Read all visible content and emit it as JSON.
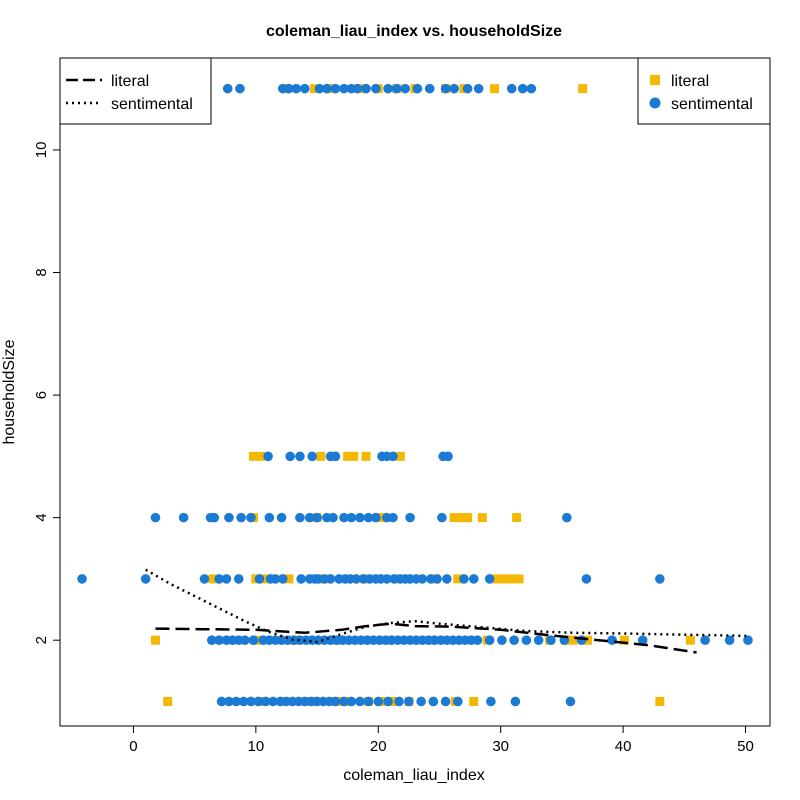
{
  "chart_data": {
    "type": "scatter",
    "title": "coleman_liau_index vs. householdSize",
    "xlabel": "coleman_liau_index",
    "ylabel": "householdSize",
    "xlim": [
      -6,
      52
    ],
    "ylim": [
      0.6,
      11.5
    ],
    "xticks": [
      0,
      10,
      20,
      30,
      40,
      50
    ],
    "yticks": [
      2,
      4,
      6,
      8,
      10
    ],
    "grid": false,
    "colors": {
      "literal": "#F5B800",
      "sentimental": "#1A7AD4"
    },
    "series": [
      {
        "name": "literal",
        "marker": "square",
        "points": [
          [
            12.5,
            11
          ],
          [
            14.8,
            11
          ],
          [
            16,
            11
          ],
          [
            18.5,
            11
          ],
          [
            20,
            11
          ],
          [
            21.5,
            11
          ],
          [
            23,
            11
          ],
          [
            25.5,
            11
          ],
          [
            27,
            11
          ],
          [
            29.5,
            11
          ],
          [
            36.7,
            11
          ],
          [
            9.8,
            5
          ],
          [
            10.4,
            5
          ],
          [
            15.3,
            5
          ],
          [
            16.4,
            5
          ],
          [
            17.5,
            5
          ],
          [
            18,
            5
          ],
          [
            19,
            5
          ],
          [
            21.8,
            5
          ],
          [
            9.8,
            4
          ],
          [
            15,
            4
          ],
          [
            20.2,
            4
          ],
          [
            26.2,
            4
          ],
          [
            26.8,
            4
          ],
          [
            27.3,
            4
          ],
          [
            28.5,
            4
          ],
          [
            31.3,
            4
          ],
          [
            6.5,
            3
          ],
          [
            10,
            3
          ],
          [
            10.8,
            3
          ],
          [
            12.7,
            3
          ],
          [
            15.6,
            3
          ],
          [
            18.9,
            3
          ],
          [
            21.5,
            3
          ],
          [
            24.7,
            3
          ],
          [
            26.5,
            3
          ],
          [
            29.6,
            3
          ],
          [
            30,
            3
          ],
          [
            30.5,
            3
          ],
          [
            31,
            3
          ],
          [
            31.5,
            3
          ],
          [
            1.8,
            2
          ],
          [
            10,
            2
          ],
          [
            13.2,
            2
          ],
          [
            16.7,
            2
          ],
          [
            20.8,
            2
          ],
          [
            24.4,
            2
          ],
          [
            28.9,
            2
          ],
          [
            34,
            2
          ],
          [
            35.3,
            2
          ],
          [
            35.9,
            2
          ],
          [
            37.1,
            2
          ],
          [
            40.1,
            2
          ],
          [
            45.5,
            2
          ],
          [
            2.8,
            1
          ],
          [
            10.6,
            1
          ],
          [
            12.3,
            1
          ],
          [
            14.6,
            1
          ],
          [
            16.2,
            1
          ],
          [
            17,
            1
          ],
          [
            17.5,
            1
          ],
          [
            19.2,
            1
          ],
          [
            20.2,
            1
          ],
          [
            21.2,
            1
          ],
          [
            22.5,
            1
          ],
          [
            26.3,
            1
          ],
          [
            27.8,
            1
          ],
          [
            43,
            1
          ]
        ]
      },
      {
        "name": "sentimental",
        "marker": "circle",
        "points": [
          [
            7.7,
            11
          ],
          [
            8.7,
            11
          ],
          [
            12.2,
            11
          ],
          [
            12.7,
            11
          ],
          [
            13.3,
            11
          ],
          [
            14,
            11
          ],
          [
            15.2,
            11
          ],
          [
            15.8,
            11
          ],
          [
            16.5,
            11
          ],
          [
            17.2,
            11
          ],
          [
            17.8,
            11
          ],
          [
            18.3,
            11
          ],
          [
            19,
            11
          ],
          [
            19.8,
            11
          ],
          [
            20.8,
            11
          ],
          [
            21.5,
            11
          ],
          [
            22.2,
            11
          ],
          [
            23.2,
            11
          ],
          [
            24.2,
            11
          ],
          [
            25.5,
            11
          ],
          [
            26.2,
            11
          ],
          [
            27.3,
            11
          ],
          [
            28.2,
            11
          ],
          [
            30.9,
            11
          ],
          [
            31.8,
            11
          ],
          [
            32.5,
            11
          ],
          [
            11,
            5
          ],
          [
            12.8,
            5
          ],
          [
            13.6,
            5
          ],
          [
            14.6,
            5
          ],
          [
            16.1,
            5
          ],
          [
            16.5,
            5
          ],
          [
            20.3,
            5
          ],
          [
            20.7,
            5
          ],
          [
            21.2,
            5
          ],
          [
            25.3,
            5
          ],
          [
            25.7,
            5
          ],
          [
            1.8,
            4
          ],
          [
            4.1,
            4
          ],
          [
            6.3,
            4
          ],
          [
            6.6,
            4
          ],
          [
            7.8,
            4
          ],
          [
            8.8,
            4
          ],
          [
            9.6,
            4
          ],
          [
            11.1,
            4
          ],
          [
            12.1,
            4
          ],
          [
            13.6,
            4
          ],
          [
            14.4,
            4
          ],
          [
            15,
            4
          ],
          [
            15.8,
            4
          ],
          [
            16.3,
            4
          ],
          [
            17.2,
            4
          ],
          [
            17.8,
            4
          ],
          [
            18.5,
            4
          ],
          [
            19.2,
            4
          ],
          [
            19.8,
            4
          ],
          [
            20.7,
            4
          ],
          [
            21.2,
            4
          ],
          [
            22.6,
            4
          ],
          [
            25.2,
            4
          ],
          [
            35.4,
            4
          ],
          [
            -4.2,
            3
          ],
          [
            1,
            3
          ],
          [
            5.8,
            3
          ],
          [
            7,
            3
          ],
          [
            7.6,
            3
          ],
          [
            8.6,
            3
          ],
          [
            10.3,
            3
          ],
          [
            11.2,
            3
          ],
          [
            11.6,
            3
          ],
          [
            12.2,
            3
          ],
          [
            13.7,
            3
          ],
          [
            14.4,
            3
          ],
          [
            14.8,
            3
          ],
          [
            15.1,
            3
          ],
          [
            15.6,
            3
          ],
          [
            16.1,
            3
          ],
          [
            16.8,
            3
          ],
          [
            17.3,
            3
          ],
          [
            17.7,
            3
          ],
          [
            18.2,
            3
          ],
          [
            18.8,
            3
          ],
          [
            19.3,
            3
          ],
          [
            19.8,
            3
          ],
          [
            20.2,
            3
          ],
          [
            20.7,
            3
          ],
          [
            21.3,
            3
          ],
          [
            21.8,
            3
          ],
          [
            22.2,
            3
          ],
          [
            22.6,
            3
          ],
          [
            23.1,
            3
          ],
          [
            23.6,
            3
          ],
          [
            24.3,
            3
          ],
          [
            24.8,
            3
          ],
          [
            25.6,
            3
          ],
          [
            27,
            3
          ],
          [
            27.8,
            3
          ],
          [
            29.1,
            3
          ],
          [
            37,
            3
          ],
          [
            43,
            3
          ],
          [
            6.4,
            2
          ],
          [
            7,
            2
          ],
          [
            7.6,
            2
          ],
          [
            8.1,
            2
          ],
          [
            8.6,
            2
          ],
          [
            9.1,
            2
          ],
          [
            9.8,
            2
          ],
          [
            10.6,
            2
          ],
          [
            11.1,
            2
          ],
          [
            11.6,
            2
          ],
          [
            12.1,
            2
          ],
          [
            12.6,
            2
          ],
          [
            13.1,
            2
          ],
          [
            13.6,
            2
          ],
          [
            14.1,
            2
          ],
          [
            14.6,
            2
          ],
          [
            15.1,
            2
          ],
          [
            15.6,
            2
          ],
          [
            16.1,
            2
          ],
          [
            16.6,
            2
          ],
          [
            17.1,
            2
          ],
          [
            17.6,
            2
          ],
          [
            18.1,
            2
          ],
          [
            18.6,
            2
          ],
          [
            19.1,
            2
          ],
          [
            19.6,
            2
          ],
          [
            20.1,
            2
          ],
          [
            20.6,
            2
          ],
          [
            21.1,
            2
          ],
          [
            21.6,
            2
          ],
          [
            22.1,
            2
          ],
          [
            22.6,
            2
          ],
          [
            23.1,
            2
          ],
          [
            23.6,
            2
          ],
          [
            24.1,
            2
          ],
          [
            24.6,
            2
          ],
          [
            25.1,
            2
          ],
          [
            25.6,
            2
          ],
          [
            26.1,
            2
          ],
          [
            26.6,
            2
          ],
          [
            27.1,
            2
          ],
          [
            27.6,
            2
          ],
          [
            28.1,
            2
          ],
          [
            29.1,
            2
          ],
          [
            30.1,
            2
          ],
          [
            31.1,
            2
          ],
          [
            32.1,
            2
          ],
          [
            33.1,
            2
          ],
          [
            34.1,
            2
          ],
          [
            35.2,
            2
          ],
          [
            36.6,
            2
          ],
          [
            39.1,
            2
          ],
          [
            41.6,
            2
          ],
          [
            46.7,
            2
          ],
          [
            48.7,
            2
          ],
          [
            50.2,
            2
          ],
          [
            7.2,
            1
          ],
          [
            7.8,
            1
          ],
          [
            8.4,
            1
          ],
          [
            9,
            1
          ],
          [
            9.6,
            1
          ],
          [
            10.2,
            1
          ],
          [
            10.8,
            1
          ],
          [
            11.4,
            1
          ],
          [
            12,
            1
          ],
          [
            12.5,
            1
          ],
          [
            13,
            1
          ],
          [
            13.5,
            1
          ],
          [
            14,
            1
          ],
          [
            14.5,
            1
          ],
          [
            15,
            1
          ],
          [
            15.5,
            1
          ],
          [
            16,
            1
          ],
          [
            16.5,
            1
          ],
          [
            17.2,
            1
          ],
          [
            17.8,
            1
          ],
          [
            18.5,
            1
          ],
          [
            19.2,
            1
          ],
          [
            20,
            1
          ],
          [
            20.8,
            1
          ],
          [
            21.7,
            1
          ],
          [
            22.5,
            1
          ],
          [
            23.5,
            1
          ],
          [
            24.5,
            1
          ],
          [
            25.5,
            1
          ],
          [
            26.5,
            1
          ],
          [
            29.2,
            1
          ],
          [
            31.2,
            1
          ],
          [
            35.7,
            1
          ]
        ]
      }
    ],
    "trend_lines": [
      {
        "name": "literal",
        "style": "dashed",
        "points": [
          [
            1.8,
            2.19
          ],
          [
            6,
            2.18
          ],
          [
            10,
            2.17
          ],
          [
            14,
            2.12
          ],
          [
            17,
            2.17
          ],
          [
            19,
            2.23
          ],
          [
            21,
            2.27
          ],
          [
            23,
            2.23
          ],
          [
            26,
            2.22
          ],
          [
            30,
            2.17
          ],
          [
            34,
            2.08
          ],
          [
            38,
            2.0
          ],
          [
            42,
            1.92
          ],
          [
            46,
            1.8
          ]
        ]
      },
      {
        "name": "sentimental",
        "style": "dotted",
        "points": [
          [
            1,
            3.15
          ],
          [
            3,
            2.92
          ],
          [
            6,
            2.62
          ],
          [
            9,
            2.32
          ],
          [
            11,
            2.14
          ],
          [
            13,
            2.01
          ],
          [
            15,
            1.97
          ],
          [
            17,
            2.1
          ],
          [
            19,
            2.22
          ],
          [
            21,
            2.28
          ],
          [
            23,
            2.31
          ],
          [
            25,
            2.27
          ],
          [
            28,
            2.22
          ],
          [
            32,
            2.15
          ],
          [
            36,
            2.12
          ],
          [
            40,
            2.11
          ],
          [
            45,
            2.09
          ],
          [
            50.2,
            2.07
          ]
        ]
      }
    ],
    "legends": [
      {
        "position": "top-left",
        "entries": [
          {
            "label": "literal",
            "style": "dashed"
          },
          {
            "label": "sentimental",
            "style": "dotted"
          }
        ]
      },
      {
        "position": "top-right",
        "entries": [
          {
            "label": "literal",
            "marker": "square"
          },
          {
            "label": "sentimental",
            "marker": "circle"
          }
        ]
      }
    ]
  }
}
